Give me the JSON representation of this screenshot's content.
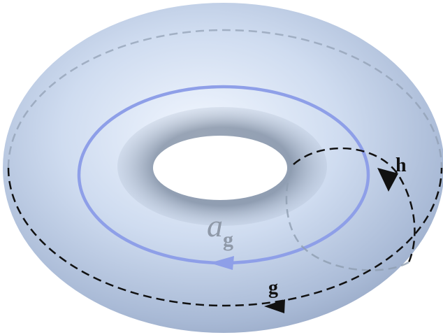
{
  "labels": {
    "loop_a": "a",
    "loop_a_sub": "g",
    "meridian": "h",
    "equator": "g"
  }
}
